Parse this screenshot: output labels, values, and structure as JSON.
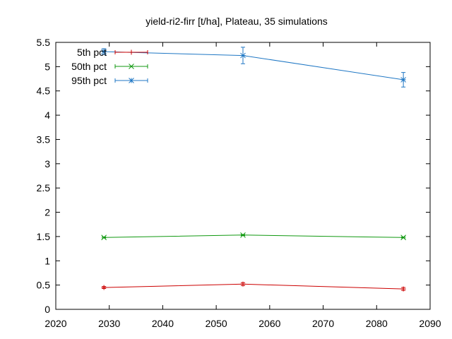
{
  "chart_data": {
    "type": "line",
    "title": "yield-ri2-firr [t/ha], Plateau, 35 simulations",
    "xlabel": "",
    "ylabel": "",
    "xlim": [
      2020,
      2090
    ],
    "ylim": [
      0,
      5.5
    ],
    "x_ticks": [
      2020,
      2030,
      2040,
      2050,
      2060,
      2070,
      2080,
      2090
    ],
    "y_ticks": [
      0,
      0.5,
      1,
      1.5,
      2,
      2.5,
      3,
      3.5,
      4,
      4.5,
      5,
      5.5
    ],
    "y_tick_labels": [
      "0",
      "0.5",
      "1",
      "1.5",
      "2",
      "2.5",
      "3",
      "3.5",
      "4",
      "4.5",
      "5",
      "5.5"
    ],
    "grid": false,
    "legend_position": "top-left",
    "x": [
      2029,
      2055,
      2085
    ],
    "series": [
      {
        "name": "5th pct",
        "color": "#cc0000",
        "marker": "plus",
        "values": [
          0.45,
          0.52,
          0.42
        ],
        "error": [
          0.02,
          0.03,
          0.03
        ]
      },
      {
        "name": "50th pct",
        "color": "#119911",
        "marker": "cross",
        "values": [
          1.48,
          1.53,
          1.48
        ],
        "error": [
          0.01,
          0.01,
          0.01
        ]
      },
      {
        "name": "95th pct",
        "color": "#1f77c4",
        "marker": "star",
        "values": [
          5.31,
          5.23,
          4.73
        ],
        "error": [
          0.06,
          0.17,
          0.15
        ]
      }
    ]
  }
}
